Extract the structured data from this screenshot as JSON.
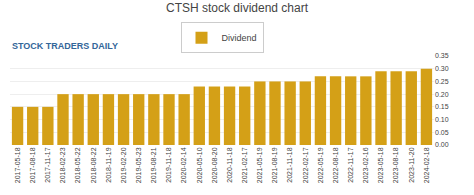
{
  "chart_data": {
    "type": "bar",
    "title": "CTSH stock dividend chart",
    "categories": [
      "2017-05-18",
      "2017-08-18",
      "2017-11-17",
      "2018-02-23",
      "2018-05-22",
      "2018-08-22",
      "2018-11-19",
      "2019-02-20",
      "2019-05-23",
      "2019-08-21",
      "2019-11-18",
      "2020-02-14",
      "2020-05-10",
      "2020-08-20",
      "2020-11-18",
      "2021-02-17",
      "2021-05-19",
      "2021-08-19",
      "2021-11-18",
      "2022-02-17",
      "2022-05-19",
      "2022-08-18",
      "2022-11-17",
      "2023-02-16",
      "2023-05-18",
      "2023-08-18",
      "2023-11-20",
      "2024-02-18"
    ],
    "series": [
      {
        "name": "Dividend",
        "color": "#D4A017",
        "values": [
          0.15,
          0.15,
          0.15,
          0.2,
          0.2,
          0.2,
          0.2,
          0.2,
          0.2,
          0.2,
          0.2,
          0.2,
          0.23,
          0.23,
          0.23,
          0.23,
          0.25,
          0.25,
          0.25,
          0.25,
          0.27,
          0.27,
          0.27,
          0.27,
          0.29,
          0.29,
          0.29,
          0.3
        ]
      }
    ],
    "ylim": [
      0,
      0.35
    ],
    "yticks": [
      {
        "value": 0,
        "label": "0.00"
      },
      0.05,
      {
        "value": 0.1,
        "label": "0.10"
      },
      0.15,
      {
        "value": 0.2,
        "label": "0.20"
      },
      0.25,
      {
        "value": 0.3,
        "label": "0.30"
      },
      0.35
    ],
    "grid": true,
    "legend": "top",
    "annotations": [
      "STOCK TRADERS DAILY"
    ]
  }
}
